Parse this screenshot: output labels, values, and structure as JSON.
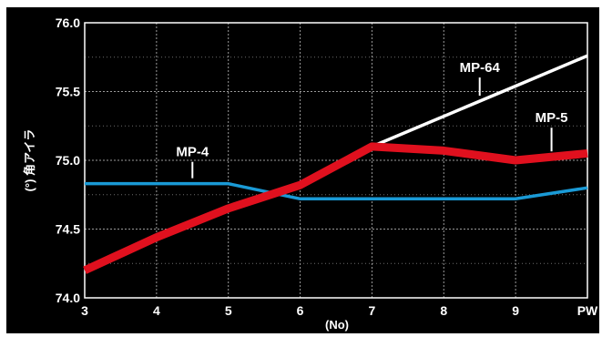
{
  "chart_data": {
    "type": "line",
    "title": "",
    "xlabel": "(No)",
    "ylabel": "(°) 角アイラ",
    "categories": [
      "3",
      "4",
      "5",
      "6",
      "7",
      "8",
      "9",
      "PW"
    ],
    "ylim": [
      74.0,
      76.0
    ],
    "yticks": [
      "74.0",
      "74.5",
      "75.0",
      "75.5",
      "76.0"
    ],
    "grid": true,
    "legend": "inline labels",
    "series": [
      {
        "name": "MP-4",
        "color": "#1a9ad6",
        "values": [
          74.83,
          74.83,
          74.83,
          74.72,
          74.72,
          74.72,
          74.72,
          74.8
        ]
      },
      {
        "name": "MP-5",
        "color": "#e0101e",
        "values": [
          74.2,
          74.44,
          74.65,
          74.82,
          75.1,
          75.07,
          75.0,
          75.05
        ]
      },
      {
        "name": "MP-64",
        "color": "#ffffff",
        "values": [
          null,
          null,
          null,
          null,
          75.1,
          75.32,
          75.54,
          75.76
        ]
      }
    ],
    "colors": {
      "background": "#000000",
      "plot_background": "#000000",
      "grid": "#9a9a9a",
      "text": "#ffffff"
    }
  }
}
